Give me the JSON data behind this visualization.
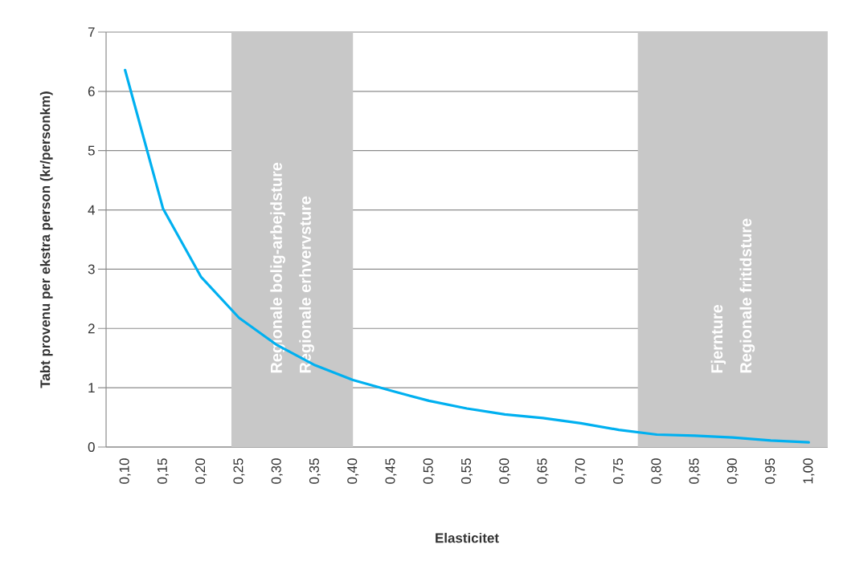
{
  "chart_data": {
    "type": "line",
    "xlabel": "Elasticitet",
    "ylabel": "Tabt provenu per ekstra person (kr/personkm)",
    "x": [
      0.1,
      0.15,
      0.2,
      0.25,
      0.3,
      0.35,
      0.4,
      0.45,
      0.5,
      0.55,
      0.6,
      0.65,
      0.7,
      0.75,
      0.8,
      0.85,
      0.9,
      0.95,
      1.0
    ],
    "series": [
      {
        "color": "#00b0f0",
        "values": [
          6.36,
          4.02,
          2.87,
          2.18,
          1.72,
          1.38,
          1.13,
          0.95,
          0.78,
          0.65,
          0.55,
          0.49,
          0.4,
          0.29,
          0.21,
          0.19,
          0.16,
          0.11,
          0.08
        ]
      }
    ],
    "xlim": [
      0.075,
      1.025
    ],
    "ylim": [
      0,
      7
    ],
    "yticks": [
      0,
      1,
      2,
      3,
      4,
      5,
      6,
      7
    ],
    "xticks": [
      {
        "value": 0.1,
        "label": "0,10"
      },
      {
        "value": 0.15,
        "label": "0,15"
      },
      {
        "value": 0.2,
        "label": "0,20"
      },
      {
        "value": 0.25,
        "label": "0,25"
      },
      {
        "value": 0.3,
        "label": "0,30"
      },
      {
        "value": 0.35,
        "label": "0,35"
      },
      {
        "value": 0.4,
        "label": "0,40"
      },
      {
        "value": 0.45,
        "label": "0,45"
      },
      {
        "value": 0.5,
        "label": "0,50"
      },
      {
        "value": 0.55,
        "label": "0,55"
      },
      {
        "value": 0.6,
        "label": "0,60"
      },
      {
        "value": 0.65,
        "label": "0,65"
      },
      {
        "value": 0.7,
        "label": "0,70"
      },
      {
        "value": 0.75,
        "label": "0,75"
      },
      {
        "value": 0.8,
        "label": "0,80"
      },
      {
        "value": 0.85,
        "label": "0,85"
      },
      {
        "value": 0.9,
        "label": "0,90"
      },
      {
        "value": 0.95,
        "label": "0,95"
      },
      {
        "value": 1.0,
        "label": "1,00"
      }
    ],
    "bands": [
      {
        "axis": "x",
        "from": 0.24,
        "to": 0.4,
        "label": "Regionale bolig-arbejdsture",
        "color": "#c8c8c8"
      },
      {
        "axis": "x",
        "from": 0.775,
        "to": 1.025,
        "label": "Fjernture",
        "color": "#c8c8c8"
      }
    ],
    "annotations": [
      "Regionale erhvervsture",
      "Regionale fritidsture"
    ],
    "grid": "y",
    "marker": "none",
    "line_style": "solid"
  }
}
